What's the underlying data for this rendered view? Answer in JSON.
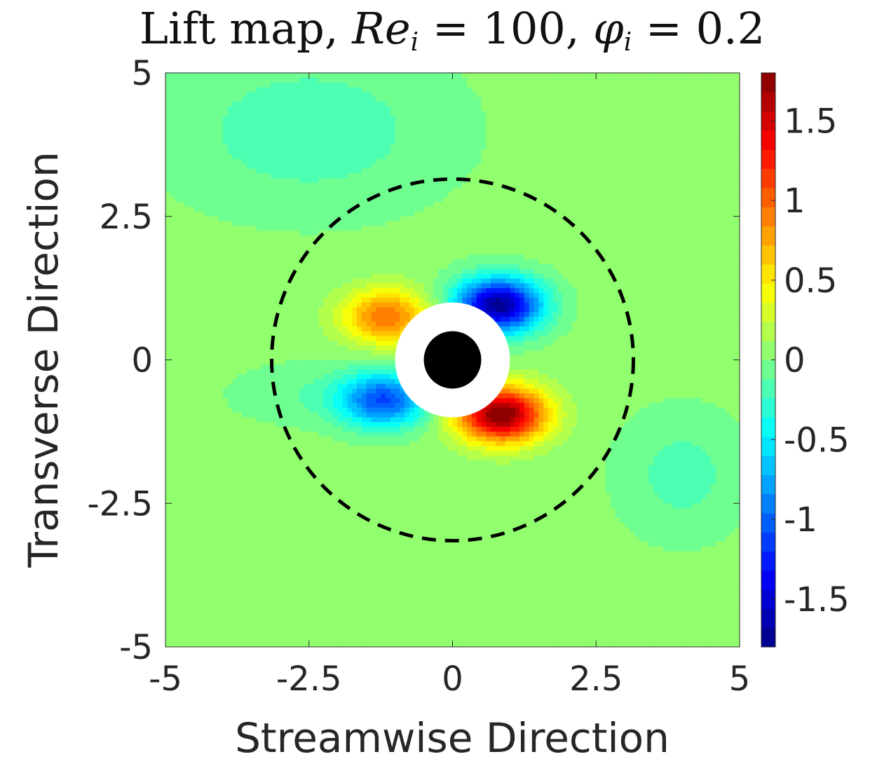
{
  "title": {
    "prefix": "Lift map, ",
    "re_symbol": "Re",
    "re_sub": "i",
    "re_value": " = 100, ",
    "phi_symbol": "φ",
    "phi_sub": "i",
    "phi_value": " = 0.2"
  },
  "chart_data": {
    "type": "heatmap",
    "title": "Lift map, Re_i = 100, φ_i = 0.2",
    "xlabel": "Streamwise Direction",
    "ylabel": "Transverse Direction",
    "xlim": [
      -5,
      5
    ],
    "ylim": [
      -5,
      5
    ],
    "x_ticks": [
      "-5",
      "-2.5",
      "0",
      "2.5",
      "5"
    ],
    "y_ticks": [
      "5",
      "2.5",
      "0",
      "-2.5",
      "-5"
    ],
    "colorbar": {
      "range": [
        -1.8,
        1.8
      ],
      "ticks": [
        "1.5",
        "1",
        "0.5",
        "0",
        "-0.5",
        "-1",
        "-1.5"
      ],
      "colormap": "jet",
      "levels": 30
    },
    "background_value": 0.05,
    "lobes": [
      {
        "name": "upper-left",
        "x": -1.15,
        "y": 0.75,
        "peak": 0.9
      },
      {
        "name": "upper-right",
        "x": 0.8,
        "y": 0.95,
        "peak": -1.8
      },
      {
        "name": "lower-left",
        "x": -1.2,
        "y": -0.7,
        "peak": -1.1
      },
      {
        "name": "lower-right",
        "x": 0.85,
        "y": -0.95,
        "peak": 1.8
      }
    ],
    "dashed_circle_radius": 3.15,
    "exclusion_radius": 1.0,
    "particle_radius": 0.5
  },
  "colors": {
    "particle": "#000000",
    "exclusion_zone": "#ffffff",
    "dashed_circle": "#000000"
  }
}
